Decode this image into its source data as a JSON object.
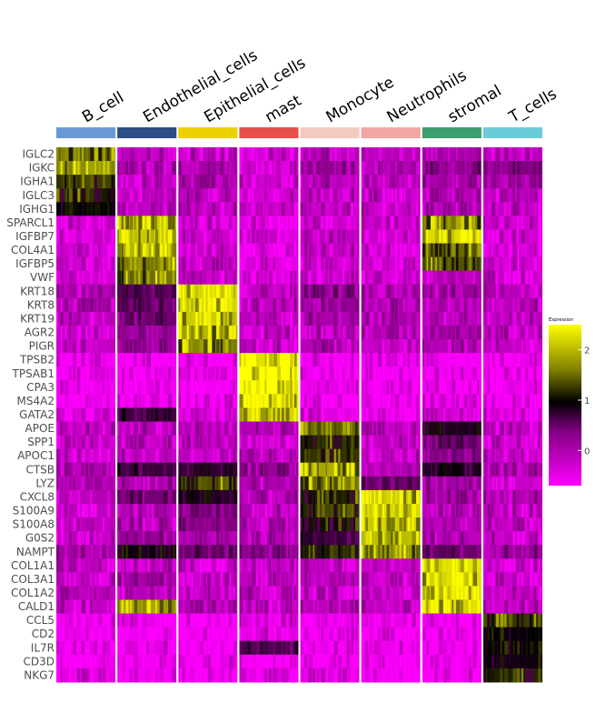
{
  "chart_data": {
    "type": "heatmap",
    "title": "",
    "xlabel": "",
    "ylabel": "",
    "clusters": [
      {
        "name": "B_cell",
        "color": "#6a9ad6"
      },
      {
        "name": "Endothelial_cells",
        "color": "#2c4d86"
      },
      {
        "name": "Epithelial_cells",
        "color": "#ecd000"
      },
      {
        "name": "mast",
        "color": "#e8504a"
      },
      {
        "name": "Monocyte",
        "color": "#f4c9bf"
      },
      {
        "name": "Neutrophils",
        "color": "#f2a6a2"
      },
      {
        "name": "stromal",
        "color": "#3d9f6f"
      },
      {
        "name": "T_cells",
        "color": "#6ccbd8"
      }
    ],
    "genes": [
      "IGLC2",
      "IGKC",
      "IGHA1",
      "IGLC3",
      "IGHG1",
      "SPARCL1",
      "IGFBP7",
      "COL4A1",
      "IGFBP5",
      "VWF",
      "KRT18",
      "KRT8",
      "KRT19",
      "AGR2",
      "PIGR",
      "TPSB2",
      "TPSAB1",
      "CPA3",
      "MS4A2",
      "GATA2",
      "APOE",
      "SPP1",
      "APOC1",
      "CTSB",
      "LYZ",
      "CXCL8",
      "S100A9",
      "S100A8",
      "G0S2",
      "NAMPT",
      "COL1A1",
      "COL3A1",
      "COL1A2",
      "CALD1",
      "CCL5",
      "CD2",
      "IL7R",
      "CD3D",
      "NKG7"
    ],
    "mean_expression": [
      [
        1.6,
        -0.3,
        -0.3,
        -0.4,
        -0.2,
        -0.2,
        -0.1,
        -0.3
      ],
      [
        1.9,
        -0.2,
        -0.1,
        -0.4,
        0.0,
        -0.1,
        0.1,
        0.1
      ],
      [
        1.4,
        -0.3,
        -0.1,
        -0.4,
        -0.2,
        -0.2,
        -0.1,
        -0.2
      ],
      [
        1.2,
        -0.3,
        -0.3,
        -0.4,
        -0.3,
        -0.3,
        -0.2,
        -0.3
      ],
      [
        1.0,
        -0.3,
        -0.3,
        -0.4,
        -0.3,
        -0.3,
        -0.2,
        -0.3
      ],
      [
        -0.4,
        2.2,
        -0.4,
        -0.5,
        -0.4,
        -0.4,
        1.8,
        -0.4
      ],
      [
        -0.4,
        2.2,
        -0.4,
        -0.5,
        -0.3,
        -0.4,
        2.3,
        -0.4
      ],
      [
        -0.4,
        2.0,
        -0.3,
        -0.5,
        -0.3,
        -0.4,
        1.6,
        -0.4
      ],
      [
        -0.4,
        1.8,
        -0.3,
        -0.5,
        -0.4,
        -0.4,
        1.5,
        -0.4
      ],
      [
        -0.4,
        1.7,
        -0.4,
        -0.5,
        -0.4,
        -0.4,
        -0.2,
        -0.4
      ],
      [
        -0.2,
        0.4,
        2.3,
        -0.3,
        0.1,
        -0.2,
        -0.1,
        -0.2
      ],
      [
        -0.2,
        0.3,
        2.3,
        -0.3,
        0.0,
        -0.2,
        -0.2,
        -0.2
      ],
      [
        -0.3,
        0.2,
        2.2,
        -0.3,
        -0.1,
        -0.2,
        -0.2,
        -0.3
      ],
      [
        -0.3,
        0.0,
        2.0,
        -0.3,
        -0.2,
        -0.3,
        -0.2,
        -0.3
      ],
      [
        -0.3,
        0.0,
        1.8,
        -0.3,
        -0.2,
        -0.3,
        -0.2,
        -0.3
      ],
      [
        -0.6,
        -0.6,
        -0.6,
        2.5,
        -0.6,
        -0.6,
        -0.6,
        -0.6
      ],
      [
        -0.6,
        -0.6,
        -0.6,
        2.5,
        -0.6,
        -0.6,
        -0.6,
        -0.6
      ],
      [
        -0.6,
        -0.6,
        -0.6,
        2.5,
        -0.6,
        -0.6,
        -0.6,
        -0.6
      ],
      [
        -0.6,
        -0.6,
        -0.6,
        2.4,
        -0.6,
        -0.6,
        -0.6,
        -0.6
      ],
      [
        -0.5,
        0.6,
        -0.5,
        2.3,
        -0.5,
        -0.5,
        -0.4,
        -0.5
      ],
      [
        -0.3,
        -0.2,
        -0.2,
        -0.2,
        1.6,
        -0.3,
        0.8,
        -0.3
      ],
      [
        -0.4,
        -0.3,
        -0.3,
        -0.3,
        1.2,
        -0.3,
        0.3,
        -0.4
      ],
      [
        -0.4,
        -0.3,
        -0.3,
        -0.3,
        1.3,
        -0.3,
        0.1,
        -0.4
      ],
      [
        -0.2,
        0.6,
        0.7,
        0.0,
        2.0,
        -0.1,
        0.8,
        -0.1
      ],
      [
        -0.3,
        -0.1,
        1.5,
        -0.2,
        1.8,
        0.3,
        -0.1,
        -0.3
      ],
      [
        -0.2,
        0.2,
        0.8,
        -0.2,
        1.2,
        2.2,
        -0.1,
        -0.2
      ],
      [
        -0.3,
        -0.2,
        0.2,
        -0.2,
        1.3,
        2.3,
        -0.2,
        -0.3
      ],
      [
        -0.3,
        -0.2,
        0.1,
        -0.2,
        1.1,
        2.2,
        -0.2,
        -0.3
      ],
      [
        -0.3,
        0.0,
        -0.2,
        -0.2,
        0.6,
        2.1,
        -0.2,
        -0.3
      ],
      [
        -0.1,
        0.9,
        0.3,
        0.1,
        1.2,
        1.9,
        0.3,
        0.0
      ],
      [
        -0.3,
        -0.2,
        -0.3,
        -0.3,
        -0.3,
        -0.3,
        2.3,
        -0.3
      ],
      [
        -0.3,
        -0.1,
        -0.3,
        -0.3,
        -0.3,
        -0.3,
        2.3,
        -0.3
      ],
      [
        -0.3,
        -0.2,
        -0.3,
        -0.3,
        -0.3,
        -0.3,
        2.3,
        -0.3
      ],
      [
        -0.3,
        2.0,
        -0.2,
        -0.3,
        -0.2,
        -0.3,
        2.3,
        -0.3
      ],
      [
        -0.6,
        -0.6,
        -0.6,
        -0.5,
        -0.6,
        -0.6,
        -0.6,
        1.3
      ],
      [
        -0.6,
        -0.6,
        -0.6,
        -0.5,
        -0.6,
        -0.6,
        -0.6,
        1.0
      ],
      [
        -0.6,
        -0.6,
        -0.6,
        0.5,
        -0.6,
        -0.6,
        -0.6,
        1.0
      ],
      [
        -0.6,
        -0.6,
        -0.6,
        -0.6,
        -0.6,
        -0.6,
        -0.6,
        0.9
      ],
      [
        -0.5,
        -0.6,
        -0.6,
        -0.5,
        -0.5,
        -0.6,
        -0.6,
        1.2
      ]
    ],
    "color_scale": {
      "low": "#ff00ff",
      "mid": "#000000",
      "high": "#ffff00"
    },
    "legend": {
      "title": "Expression",
      "ticks": [
        "0",
        "1",
        "2"
      ],
      "placement": "right"
    }
  }
}
